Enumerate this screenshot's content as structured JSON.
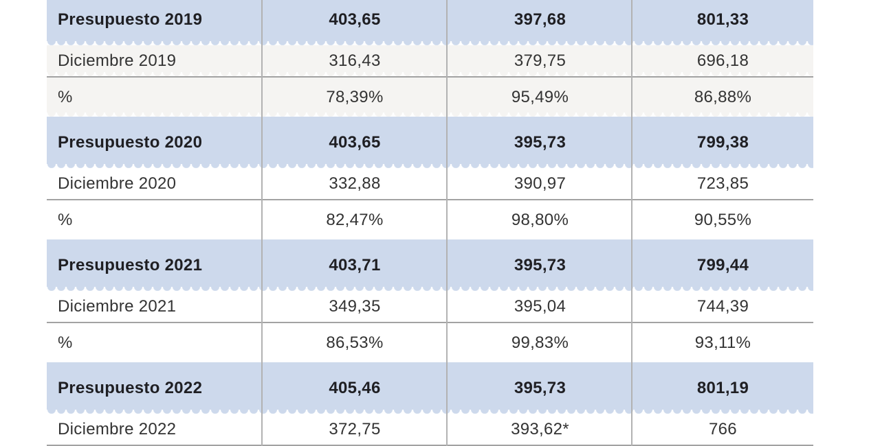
{
  "table": {
    "accent_row_color": "#cdd9ec",
    "muted_row_color": "#f5f4f2",
    "divider_color": "#b2b2b2",
    "rule_color": "#a2a2a2",
    "rows": [
      {
        "type": "budget",
        "shade": "blue",
        "cells": [
          "Presupuesto 2019",
          "403,65",
          "397,68",
          "801,33"
        ]
      },
      {
        "type": "month",
        "shade": "gray",
        "cells": [
          "Diciembre 2019",
          "316,43",
          "379,75",
          "696,18"
        ]
      },
      {
        "type": "pct",
        "shade": "gray",
        "cells": [
          "%",
          "78,39%",
          "95,49%",
          "86,88%"
        ]
      },
      {
        "type": "budget",
        "shade": "blue",
        "cells": [
          "Presupuesto 2020",
          "403,65",
          "395,73",
          "799,38"
        ]
      },
      {
        "type": "month",
        "shade": "white",
        "cells": [
          "Diciembre 2020",
          "332,88",
          "390,97",
          "723,85"
        ]
      },
      {
        "type": "pct",
        "shade": "white",
        "cells": [
          "%",
          "82,47%",
          "98,80%",
          "90,55%"
        ]
      },
      {
        "type": "budget",
        "shade": "blue",
        "cells": [
          "Presupuesto 2021",
          "403,71",
          "395,73",
          "799,44"
        ]
      },
      {
        "type": "month",
        "shade": "white",
        "cells": [
          "Diciembre 2021",
          "349,35",
          "395,04",
          "744,39"
        ]
      },
      {
        "type": "pct",
        "shade": "white",
        "cells": [
          "%",
          "86,53%",
          "99,83%",
          "93,11%"
        ]
      },
      {
        "type": "budget",
        "shade": "blue",
        "cells": [
          "Presupuesto 2022",
          "405,46",
          "395,73",
          "801,19"
        ]
      },
      {
        "type": "month",
        "shade": "white",
        "cells": [
          "Diciembre 2022",
          "372,75",
          "393,62*",
          "766"
        ]
      }
    ]
  },
  "chart_data": {
    "type": "table",
    "rows": [
      [
        "Presupuesto 2019",
        "403,65",
        "397,68",
        "801,33"
      ],
      [
        "Diciembre 2019",
        "316,43",
        "379,75",
        "696,18"
      ],
      [
        "%",
        "78,39%",
        "95,49%",
        "86,88%"
      ],
      [
        "Presupuesto 2020",
        "403,65",
        "395,73",
        "799,38"
      ],
      [
        "Diciembre 2020",
        "332,88",
        "390,97",
        "723,85"
      ],
      [
        "%",
        "82,47%",
        "98,80%",
        "90,55%"
      ],
      [
        "Presupuesto 2021",
        "403,71",
        "395,73",
        "799,44"
      ],
      [
        "Diciembre 2021",
        "349,35",
        "395,04",
        "744,39"
      ],
      [
        "%",
        "86,53%",
        "99,83%",
        "93,11%"
      ],
      [
        "Presupuesto 2022",
        "405,46",
        "395,73",
        "801,19"
      ],
      [
        "Diciembre 2022",
        "372,75",
        "393,62*",
        "766"
      ]
    ]
  }
}
